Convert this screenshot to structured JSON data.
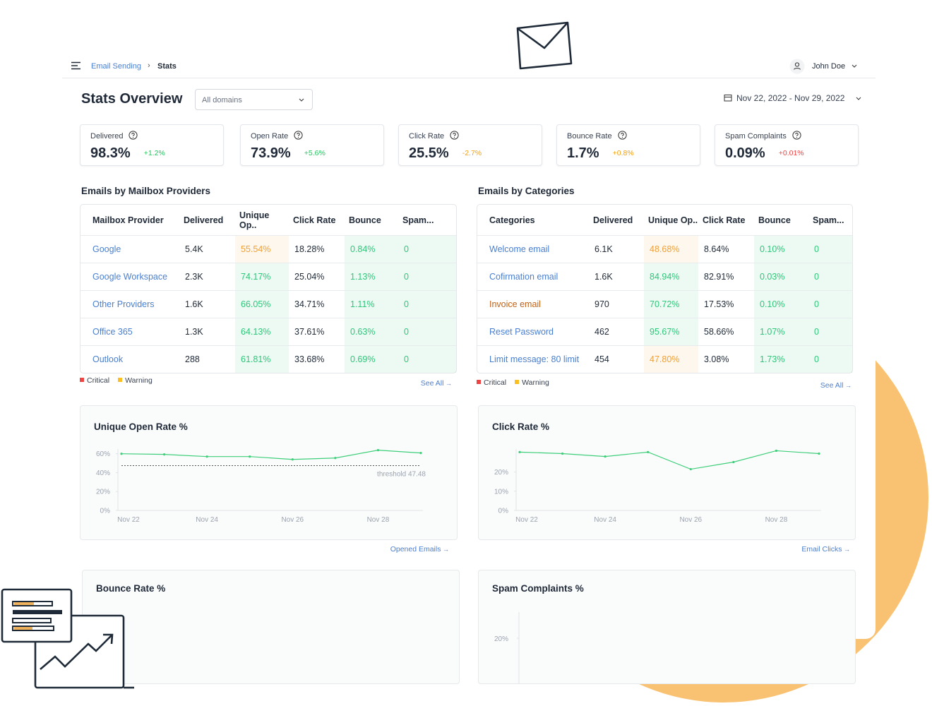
{
  "header": {
    "breadcrumb": [
      "Email Sending",
      "Stats"
    ],
    "user": "John Doe"
  },
  "overview": {
    "title": "Stats Overview",
    "domain_filter": "All domains",
    "date_range": "Nov 22, 2022 - Nov 29, 2022"
  },
  "kpis": [
    {
      "label": "Delivered",
      "value": "98.3%",
      "change": "+1.2%",
      "change_color": "#22c55e"
    },
    {
      "label": "Open Rate",
      "value": "73.9%",
      "change": "+5.6%",
      "change_color": "#22c55e"
    },
    {
      "label": "Click Rate",
      "value": "25.5%",
      "change": "-2.7%",
      "change_color": "#f59e0b"
    },
    {
      "label": "Bounce Rate",
      "value": "1.7%",
      "change": "+0.8%",
      "change_color": "#f59e0b"
    },
    {
      "label": "Spam Complaints",
      "value": "0.09%",
      "change": "+0.01%",
      "change_color": "#ef4444"
    }
  ],
  "tables": [
    {
      "title": "Emails by Mailbox Providers",
      "columns": [
        "Mailbox Provider",
        "Delivered",
        "Unique Op..",
        "Click Rate",
        "Bounce",
        "Spam..."
      ],
      "rows": [
        [
          "Google",
          "5.4K",
          "55.54%",
          "18.28%",
          "0.84%",
          "0"
        ],
        [
          "Google Workspace",
          "2.3K",
          "74.17%",
          "25.04%",
          "1.13%",
          "0"
        ],
        [
          "Other Providers",
          "1.6K",
          "66.05%",
          "34.71%",
          "1.11%",
          "0"
        ],
        [
          "Office 365",
          "1.3K",
          "64.13%",
          "37.61%",
          "0.63%",
          "0"
        ],
        [
          "Outlook",
          "288",
          "61.81%",
          "33.68%",
          "0.69%",
          "0"
        ]
      ],
      "cell_colors": [
        [
          "#4a7fd0",
          null,
          "#f0a13a",
          null,
          "#2fc77a",
          "#2fc77a"
        ],
        [
          "#4a7fd0",
          null,
          "#2fc77a",
          null,
          "#2fc77a",
          "#2fc77a"
        ],
        [
          "#4a7fd0",
          null,
          "#2fc77a",
          null,
          "#2fc77a",
          "#2fc77a"
        ],
        [
          "#4a7fd0",
          null,
          "#2fc77a",
          null,
          "#2fc77a",
          "#2fc77a"
        ],
        [
          "#4a7fd0",
          null,
          "#2fc77a",
          null,
          "#2fc77a",
          "#2fc77a"
        ]
      ],
      "legend": [
        {
          "name": "Critical",
          "color": "#ef4444"
        },
        {
          "name": "Warning",
          "color": "#fbbf24"
        }
      ],
      "link": "See All"
    },
    {
      "title": "Emails by Categories",
      "columns": [
        "Categories",
        "Delivered",
        "Unique Op..",
        "Click Rate",
        "Bounce",
        "Spam..."
      ],
      "rows": [
        [
          "Welcome email",
          "6.1K",
          "48.68%",
          "8.64%",
          "0.10%",
          "0"
        ],
        [
          "Cofirmation email",
          "1.6K",
          "84.94%",
          "82.91%",
          "0.03%",
          "0"
        ],
        [
          "Invoice email",
          "970",
          "70.72%",
          "17.53%",
          "0.10%",
          "0"
        ],
        [
          "Reset Password",
          "462",
          "95.67%",
          "58.66%",
          "1.07%",
          "0"
        ],
        [
          "Limit message: 80 limit",
          "454",
          "47.80%",
          "3.08%",
          "1.73%",
          "0"
        ]
      ],
      "cell_colors": [
        [
          "#4a7fd0",
          null,
          "#f0a13a",
          null,
          "#2fc77a",
          "#2fc77a"
        ],
        [
          "#4a7fd0",
          null,
          "#2fc77a",
          null,
          "#2fc77a",
          "#2fc77a"
        ],
        [
          "#c0621a",
          null,
          "#2fc77a",
          null,
          "#2fc77a",
          "#2fc77a"
        ],
        [
          "#4a7fd0",
          null,
          "#2fc77a",
          null,
          "#2fc77a",
          "#2fc77a"
        ],
        [
          "#4a7fd0",
          null,
          "#f0a13a",
          null,
          "#2fc77a",
          "#2fc77a"
        ]
      ],
      "legend": [
        {
          "name": "Critical",
          "color": "#ef4444"
        },
        {
          "name": "Warning",
          "color": "#fbbf24"
        }
      ],
      "link": "See All"
    }
  ],
  "chart_data": [
    {
      "type": "line",
      "title": "Unique Open Rate %",
      "categories": [
        "Nov 22",
        null,
        "Nov 24",
        null,
        "Nov 26",
        null,
        "Nov 28",
        null
      ],
      "values": [
        60,
        59.3,
        57,
        57,
        54,
        55.5,
        63.8,
        60.8
      ],
      "color": "#3ecf7a",
      "ylim": [
        0,
        65
      ],
      "yticks": [
        {
          "value": 0,
          "label": "0%"
        },
        {
          "value": 20,
          "label": "20%"
        },
        {
          "value": 40,
          "label": "40%"
        },
        {
          "value": 60,
          "label": "60%"
        }
      ],
      "threshold": {
        "value": 47.48,
        "label": "threshold 47.48"
      },
      "link": "Opened Emails"
    },
    {
      "type": "line",
      "title": "Click Rate %",
      "categories": [
        "Nov 22",
        null,
        "Nov 24",
        null,
        "Nov 26",
        null,
        "Nov 28",
        null
      ],
      "values": [
        30.4,
        29.6,
        28.1,
        30.4,
        21.5,
        25.2,
        31.1,
        29.6
      ],
      "color": "#3ecf7a",
      "ylim": [
        0,
        32
      ],
      "yticks": [
        {
          "value": 0,
          "label": "0%"
        },
        {
          "value": 10,
          "label": "10%"
        },
        {
          "value": 20,
          "label": "20%"
        }
      ],
      "link": "Email Clicks"
    }
  ],
  "panels": [
    {
      "title": "Bounce Rate %"
    },
    {
      "title": "Spam Complaints %",
      "yticks": [
        {
          "value": 20,
          "label": "20%"
        }
      ]
    }
  ]
}
